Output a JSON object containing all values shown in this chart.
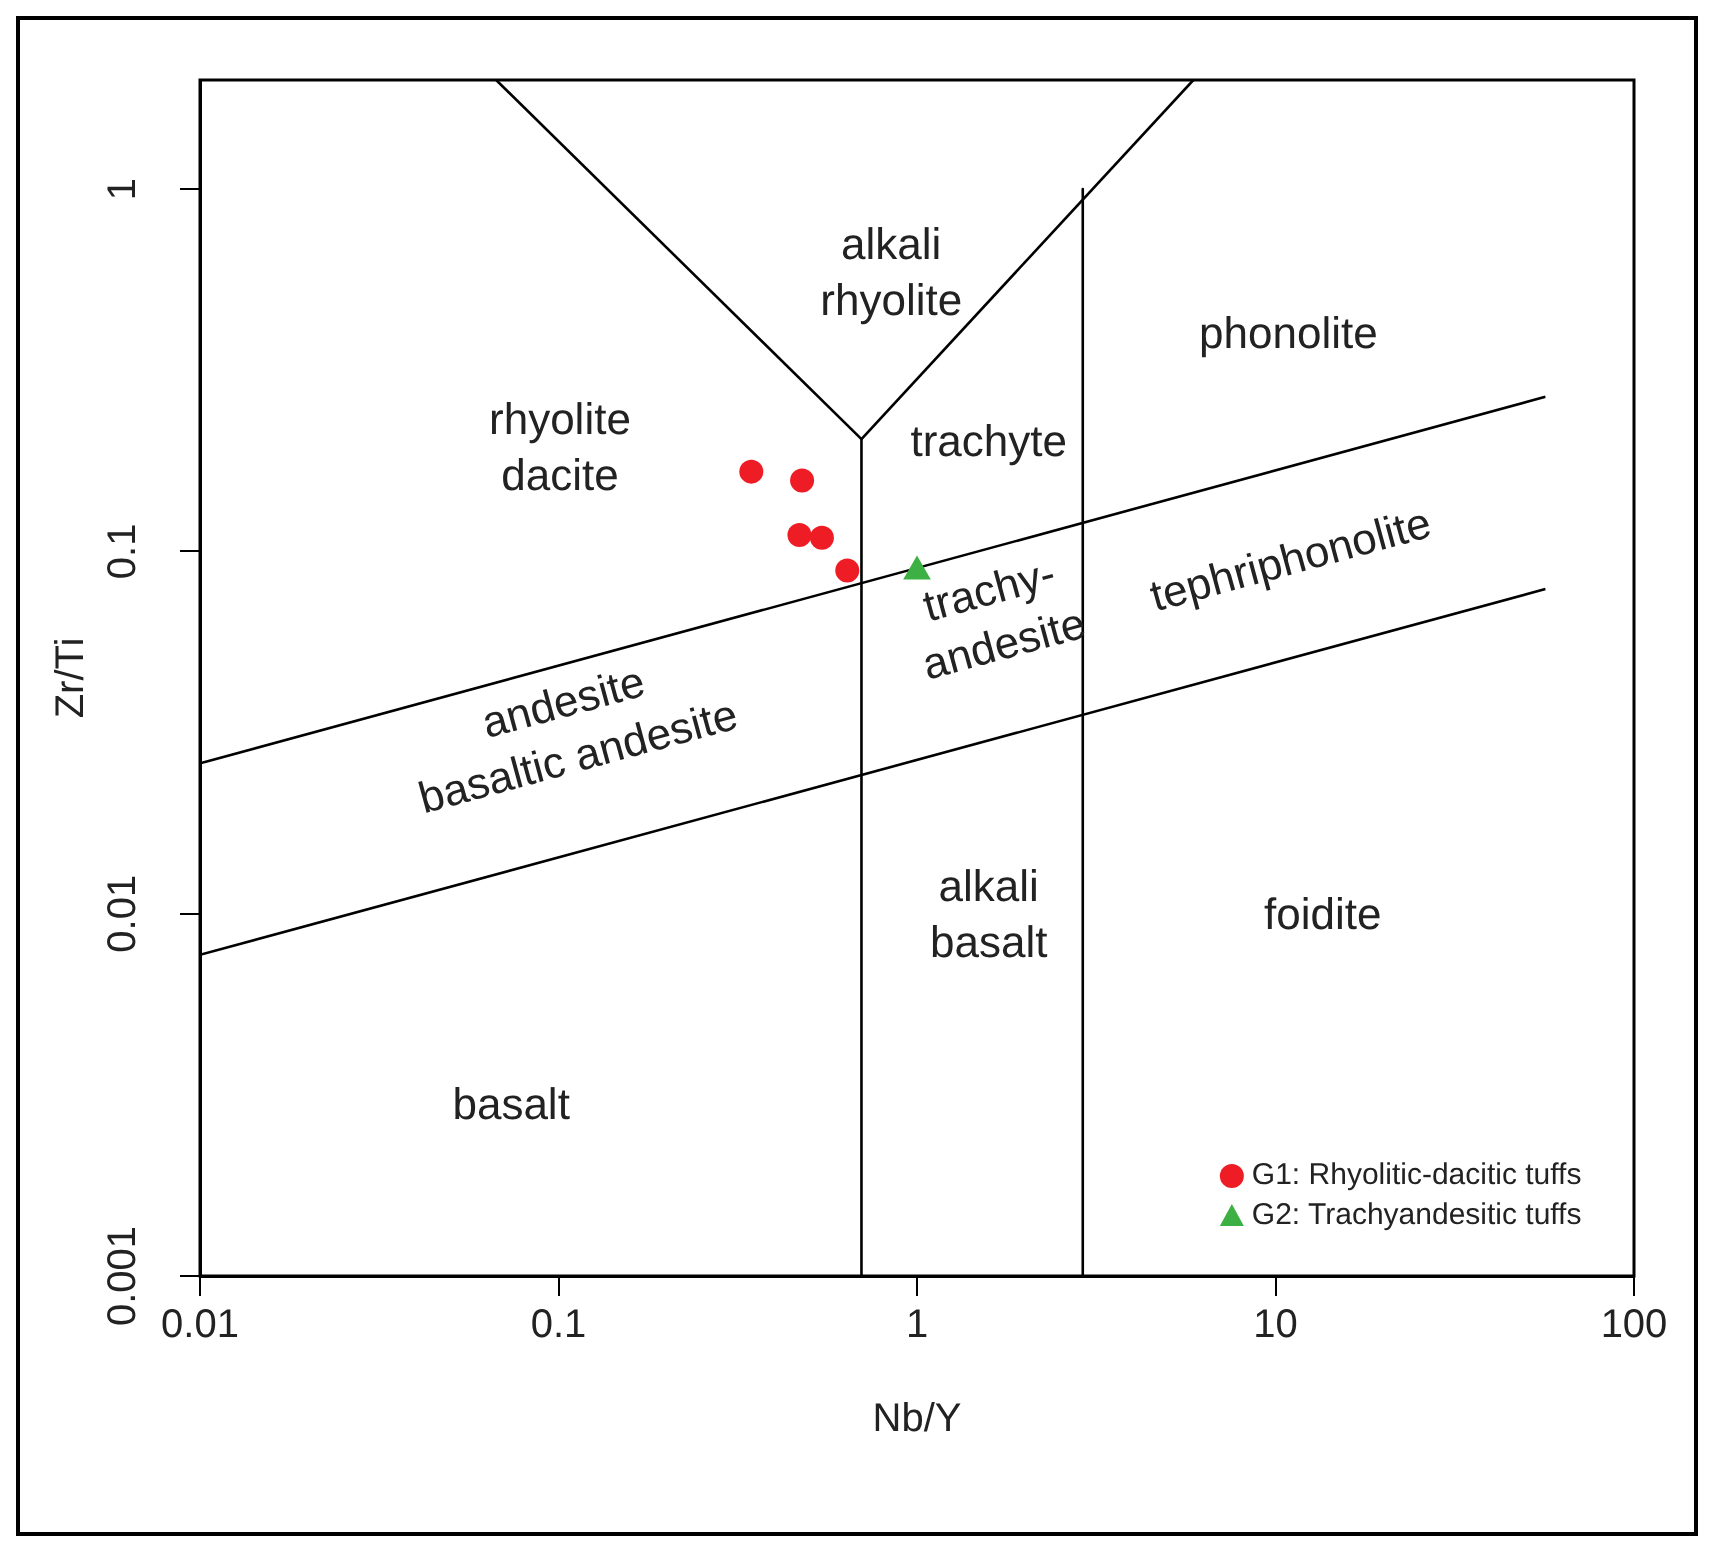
{
  "chart_data": {
    "type": "scatter",
    "xlabel": "Nb/Y",
    "ylabel": "Zr/Ti",
    "log": "xy",
    "xlim": [
      0.01,
      100
    ],
    "ylim": [
      0.001,
      2
    ],
    "xticks": [
      0.01,
      0.1,
      1,
      10,
      100
    ],
    "yticks": [
      0.001,
      0.01,
      0.1,
      1
    ],
    "grid": false,
    "legend": "bottom right",
    "series": [
      {
        "name": "G1: Rhyolitic-dacitic tuffs",
        "marker": "circle",
        "color": "#ee1c24",
        "x": [
          0.345,
          0.478,
          0.47,
          0.543,
          0.639
        ],
        "values": [
          0.166,
          0.157,
          0.111,
          0.109,
          0.0886
        ]
      },
      {
        "name": "G2: Trachyandesitic tuffs",
        "marker": "triangle",
        "color": "#3cb043",
        "x": [
          1.0
        ],
        "values": [
          0.088
        ]
      },
      {
        "type": "line",
        "marker": "none",
        "color": "#000000",
        "x": [
          0.01,
          56.6
        ],
        "values": [
          0.026,
          0.267
        ]
      },
      {
        "type": "line",
        "marker": "none",
        "color": "#000000",
        "x": [
          0.01,
          56.6
        ],
        "values": [
          0.0077,
          0.0787
        ]
      },
      {
        "type": "line",
        "marker": "none",
        "color": "#000000",
        "x": [
          0.067,
          0.7
        ],
        "values": [
          2,
          0.204
        ]
      },
      {
        "type": "line",
        "marker": "none",
        "color": "#000000",
        "x": [
          0.7,
          5.9
        ],
        "values": [
          0.204,
          2
        ]
      },
      {
        "type": "line",
        "marker": "none",
        "color": "#000000",
        "x": [
          0.7,
          0.7
        ],
        "values": [
          0.204,
          0.001
        ]
      },
      {
        "type": "line",
        "marker": "none",
        "color": "#000000",
        "x": [
          2.9,
          2.9
        ],
        "values": [
          1,
          0.001
        ]
      }
    ],
    "annotations": [
      "alkali\nrhyolite",
      "phonolite",
      "rhyolite\ndacite",
      "trachyte",
      "trachy-\nandesite",
      "tephriphonolite",
      "andesite\nbasaltic andesite",
      "alkali\nbasalt",
      "foidite",
      "basalt"
    ]
  }
}
